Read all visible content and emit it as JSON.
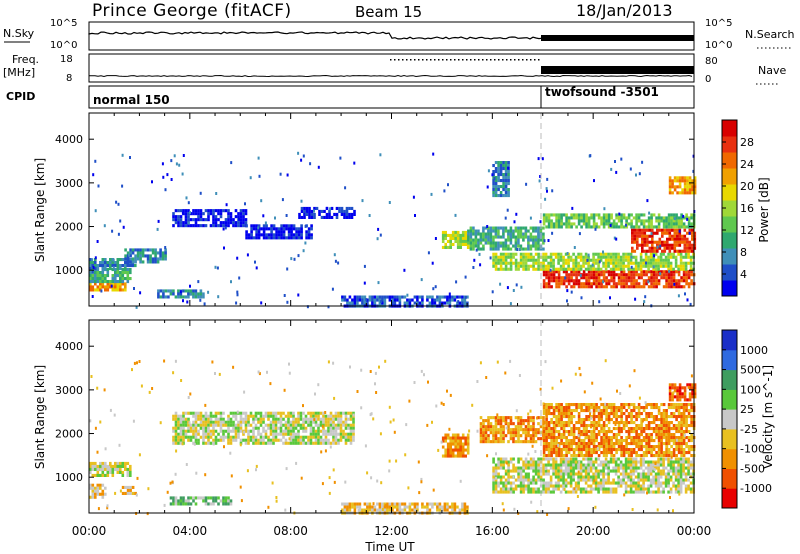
{
  "header": {
    "radar": "Prince George (fitACF)",
    "beam": "Beam 15",
    "date": "18/Jan/2013"
  },
  "top_panel": {
    "nsky_label": "N.Sky",
    "nsky_ticks": [
      "10^5",
      "10^0"
    ],
    "nsearch_label": "N.Search",
    "nsearch_ticks": [
      "10^5",
      "10^0"
    ],
    "freq_label": "Freq.",
    "freq_unit": "[MHz]",
    "freq_ticks": [
      "18",
      "8"
    ],
    "nave_label": "Nave",
    "nave_ticks": [
      "80",
      "0"
    ],
    "cpid_label": "CPID",
    "modes": [
      {
        "label": "normal 150",
        "start_hour": 0
      },
      {
        "label": "twofsound -3501",
        "start_hour": 18
      }
    ]
  },
  "chart_data": [
    {
      "type": "heatmap",
      "title": "Power",
      "ylabel": "Slant Range [km]",
      "xlabel": "",
      "xlim_hours": [
        0,
        24
      ],
      "ylim": [
        180,
        4600
      ],
      "y_ticks": [
        1000,
        2000,
        3000,
        4000
      ],
      "x_ticks": [
        0,
        4,
        8,
        12,
        16,
        20,
        24
      ],
      "colorbar": {
        "label": "Power [dB]",
        "ticks": [
          "4",
          "8",
          "12",
          "16",
          "20",
          "24",
          "28"
        ],
        "colors": [
          "#0000ee",
          "#1f4fc8",
          "#3f8fb8",
          "#2fa86f",
          "#5fc84f",
          "#9fd838",
          "#e8d800",
          "#f0a000",
          "#f06800",
          "#e83010",
          "#d80000"
        ]
      },
      "regions": [
        {
          "h0": 0.0,
          "h1": 1.4,
          "r0": 560,
          "r1": 720,
          "level": 7
        },
        {
          "h0": 0.0,
          "h1": 1.6,
          "r0": 720,
          "r1": 1050,
          "level": 3
        },
        {
          "h0": 0.0,
          "h1": 1.8,
          "r0": 1050,
          "r1": 1280,
          "level": 2
        },
        {
          "h0": 1.4,
          "h1": 3.0,
          "r0": 1200,
          "r1": 1500,
          "level": 2
        },
        {
          "h0": 2.7,
          "h1": 4.5,
          "r0": 400,
          "r1": 560,
          "level": 2
        },
        {
          "h0": 3.3,
          "h1": 6.2,
          "r0": 2000,
          "r1": 2400,
          "level": 0
        },
        {
          "h0": 6.2,
          "h1": 8.8,
          "r0": 1750,
          "r1": 2050,
          "level": 0
        },
        {
          "h0": 8.3,
          "h1": 10.5,
          "r0": 2200,
          "r1": 2450,
          "level": 0
        },
        {
          "h0": 10.0,
          "h1": 15.0,
          "r0": 200,
          "r1": 420,
          "level": 1
        },
        {
          "h0": 14.0,
          "h1": 15.0,
          "r0": 1550,
          "r1": 1900,
          "level": 5
        },
        {
          "h0": 15.0,
          "h1": 18.0,
          "r0": 1500,
          "r1": 2000,
          "level": 3
        },
        {
          "h0": 16.0,
          "h1": 16.6,
          "r0": 2700,
          "r1": 3500,
          "level": 2
        },
        {
          "h0": 18.0,
          "h1": 24.0,
          "r0": 650,
          "r1": 1000,
          "level": 9
        },
        {
          "h0": 16.0,
          "h1": 24.0,
          "r0": 1000,
          "r1": 1400,
          "level": 5
        },
        {
          "h0": 18.0,
          "h1": 24.0,
          "r0": 2000,
          "r1": 2300,
          "level": 4
        },
        {
          "h0": 21.5,
          "h1": 24.0,
          "r0": 1450,
          "r1": 1950,
          "level": 9
        },
        {
          "h0": 23.0,
          "h1": 24.0,
          "r0": 2800,
          "r1": 3150,
          "level": 7
        }
      ]
    },
    {
      "type": "heatmap",
      "title": "Velocity",
      "ylabel": "Slant Range [km]",
      "xlabel": "Time UT",
      "xlim_hours": [
        0,
        24
      ],
      "ylim": [
        180,
        4600
      ],
      "y_ticks": [
        1000,
        2000,
        3000,
        4000
      ],
      "x_tick_labels": [
        "00:00",
        "04:00",
        "08:00",
        "12:00",
        "16:00",
        "20:00",
        "00:00"
      ],
      "colorbar": {
        "label": "Velocity [m s^-1]",
        "ticks": [
          "1000",
          "500",
          "100",
          "25",
          "-25",
          "-100",
          "-500",
          "-1000"
        ],
        "colors": [
          "#1a2fc8",
          "#2f6ae0",
          "#3f9d60",
          "#59c83a",
          "#c8c8c8",
          "#e8c020",
          "#f09000",
          "#f05000",
          "#e80000"
        ]
      },
      "regions": [
        {
          "h0": 0.0,
          "h1": 1.6,
          "r0": 1050,
          "r1": 1350,
          "level": 4
        },
        {
          "h0": 0.0,
          "h1": 0.6,
          "r0": 560,
          "r1": 850,
          "level": 5
        },
        {
          "h0": 1.3,
          "h1": 1.8,
          "r0": 660,
          "r1": 800,
          "level": 5
        },
        {
          "h0": 3.2,
          "h1": 5.6,
          "r0": 360,
          "r1": 560,
          "level": 3
        },
        {
          "h0": 3.3,
          "h1": 10.5,
          "r0": 1800,
          "r1": 2500,
          "level": 4
        },
        {
          "h0": 10.0,
          "h1": 15.0,
          "r0": 200,
          "r1": 420,
          "level": 5
        },
        {
          "h0": 14.0,
          "h1": 15.0,
          "r0": 1500,
          "r1": 2000,
          "level": 6
        },
        {
          "h0": 16.0,
          "h1": 24.0,
          "r0": 650,
          "r1": 1450,
          "level": 4
        },
        {
          "h0": 15.5,
          "h1": 18.0,
          "r0": 1800,
          "r1": 2400,
          "level": 6
        },
        {
          "h0": 18.0,
          "h1": 24.0,
          "r0": 1500,
          "r1": 2700,
          "level": 6
        },
        {
          "h0": 23.0,
          "h1": 24.0,
          "r0": 2800,
          "r1": 3150,
          "level": 7
        }
      ]
    }
  ]
}
